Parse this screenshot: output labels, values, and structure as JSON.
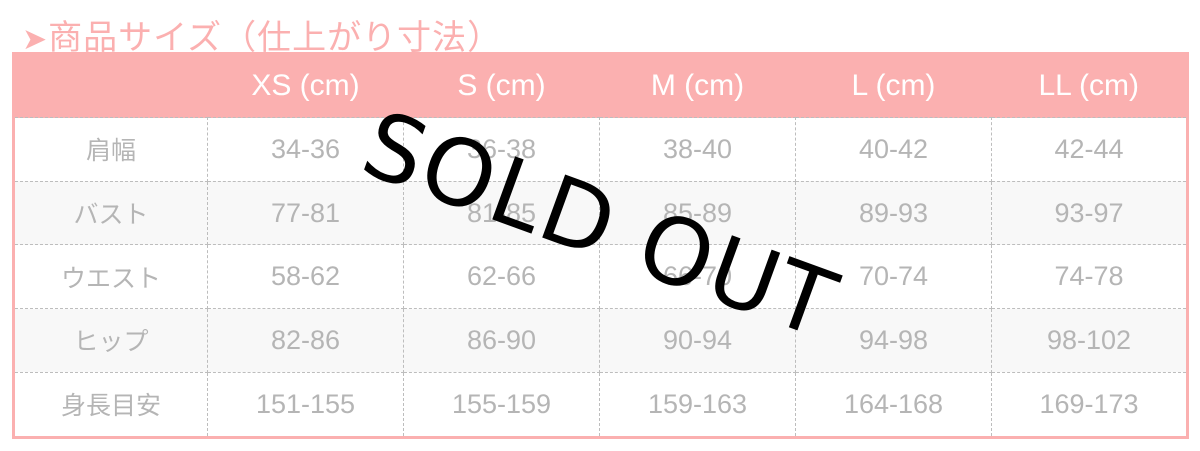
{
  "title": {
    "arrow": "➤",
    "text": "商品サイズ（仕上がり寸法）"
  },
  "headers": [
    "",
    "XS (cm)",
    "S (cm)",
    "M (cm)",
    "L (cm)",
    "LL (cm)"
  ],
  "rows": [
    {
      "label": "肩幅",
      "values": [
        "34-36",
        "36-38",
        "38-40",
        "40-42",
        "42-44"
      ]
    },
    {
      "label": "バスト",
      "values": [
        "77-81",
        "81-85",
        "85-89",
        "89-93",
        "93-97"
      ]
    },
    {
      "label": "ウエスト",
      "values": [
        "58-62",
        "62-66",
        "66-70",
        "70-74",
        "74-78"
      ]
    },
    {
      "label": "ヒップ",
      "values": [
        "82-86",
        "86-90",
        "90-94",
        "94-98",
        "98-102"
      ]
    },
    {
      "label": "身長目安",
      "values": [
        "151-155",
        "155-159",
        "159-163",
        "164-168",
        "169-173"
      ]
    }
  ],
  "overlay": "SOLD OUT",
  "colors": {
    "accent": "#fbb0b0",
    "text": "#b5b5b5",
    "overlay": "#000000"
  }
}
